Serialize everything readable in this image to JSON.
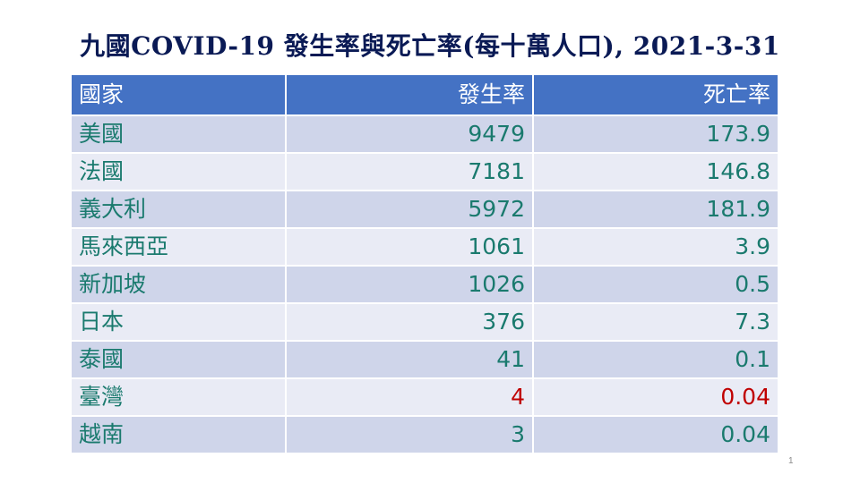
{
  "title": "九國COVID-19 發生率與死亡率(每十萬人口), 2021-3-31",
  "table": {
    "headers": [
      "國家",
      "發生率",
      "死亡率"
    ],
    "rows": [
      {
        "country": "美國",
        "incidence": "9479",
        "mortality": "173.9",
        "highlight": false
      },
      {
        "country": "法國",
        "incidence": "7181",
        "mortality": "146.8",
        "highlight": false
      },
      {
        "country": "義大利",
        "incidence": "5972",
        "mortality": "181.9",
        "highlight": false
      },
      {
        "country": "馬來西亞",
        "incidence": "1061",
        "mortality": "3.9",
        "highlight": false
      },
      {
        "country": "新加坡",
        "incidence": "1026",
        "mortality": "0.5",
        "highlight": false
      },
      {
        "country": "日本",
        "incidence": "376",
        "mortality": "7.3",
        "highlight": false
      },
      {
        "country": "泰國",
        "incidence": "41",
        "mortality": "0.1",
        "highlight": false
      },
      {
        "country": "臺灣",
        "incidence": "4",
        "mortality": "0.04",
        "highlight": true
      },
      {
        "country": "越南",
        "incidence": "3",
        "mortality": "0.04",
        "highlight": false
      }
    ]
  },
  "page_number": "1",
  "colors": {
    "title": "#0a1a55",
    "header_bg": "#4472c4",
    "header_text": "#ffffff",
    "row_odd": "#cfd5ea",
    "row_even": "#e9ebf5",
    "cell_text": "#1a7a6e",
    "highlight_text": "#c00000"
  }
}
